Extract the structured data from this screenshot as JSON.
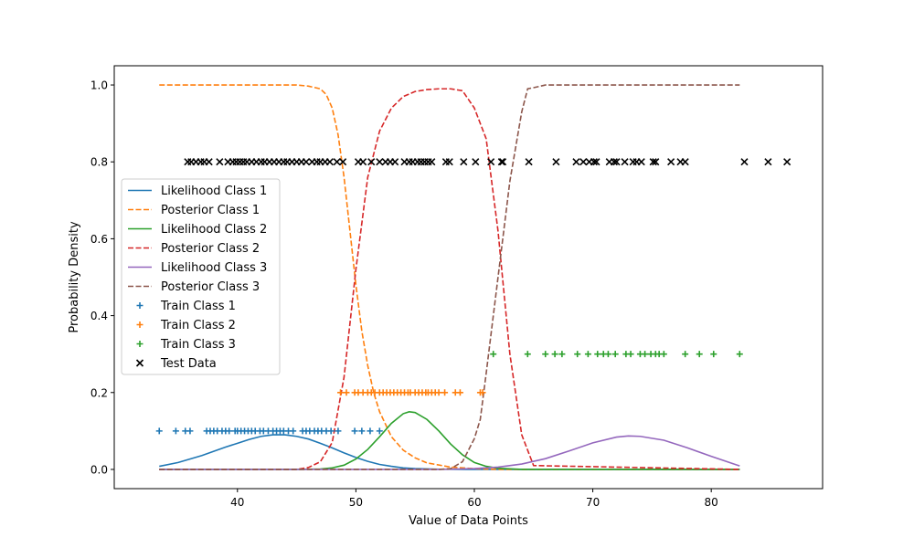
{
  "chart_data": {
    "type": "line",
    "title": "",
    "xlabel": "Value of Data Points",
    "ylabel": "Probability Density",
    "xlim": [
      29.6,
      89.4
    ],
    "ylim": [
      -0.05,
      1.05
    ],
    "xticks": [
      40,
      50,
      60,
      70,
      80
    ],
    "yticks": [
      0.0,
      0.2,
      0.4,
      0.6,
      0.8,
      1.0
    ],
    "ytick_labels": [
      "0.0",
      "0.2",
      "0.4",
      "0.6",
      "0.8",
      "1.0"
    ],
    "grid": false,
    "legend_position": "center-left",
    "legend": [
      {
        "label": "Likelihood Class 1",
        "kind": "line",
        "color": "#1f77b4",
        "dash": false
      },
      {
        "label": "Posterior Class 1",
        "kind": "line",
        "color": "#ff7f0e",
        "dash": true
      },
      {
        "label": "Likelihood Class 2",
        "kind": "line",
        "color": "#2ca02c",
        "dash": false
      },
      {
        "label": "Posterior Class 2",
        "kind": "line",
        "color": "#d62728",
        "dash": true
      },
      {
        "label": "Likelihood Class 3",
        "kind": "line",
        "color": "#9467bd",
        "dash": false
      },
      {
        "label": "Posterior Class 3",
        "kind": "line",
        "color": "#8c564b",
        "dash": true
      },
      {
        "label": "Train Class 1",
        "kind": "plus",
        "color": "#1f77b4"
      },
      {
        "label": "Train Class 2",
        "kind": "plus",
        "color": "#ff7f0e"
      },
      {
        "label": "Train Class 3",
        "kind": "plus",
        "color": "#2ca02c"
      },
      {
        "label": "Test Data",
        "kind": "cross",
        "color": "#000000"
      }
    ],
    "series": [
      {
        "name": "Likelihood Class 1",
        "color": "#1f77b4",
        "dash": false,
        "x": [
          33.4,
          35,
          37,
          39,
          40,
          41,
          42,
          43,
          44,
          45,
          46,
          47,
          48,
          49,
          50,
          51,
          52,
          53,
          54,
          55,
          57,
          60,
          82.4
        ],
        "y": [
          0.008,
          0.018,
          0.036,
          0.058,
          0.068,
          0.078,
          0.086,
          0.09,
          0.09,
          0.086,
          0.079,
          0.068,
          0.056,
          0.043,
          0.031,
          0.021,
          0.013,
          0.008,
          0.004,
          0.002,
          0.0005,
          0.0,
          0.0
        ]
      },
      {
        "name": "Posterior Class 1",
        "color": "#ff7f0e",
        "dash": true,
        "x": [
          33.4,
          44,
          45,
          46,
          47,
          47.5,
          48,
          48.5,
          49,
          49.5,
          50,
          50.5,
          51,
          51.5,
          52,
          53,
          54,
          55,
          56,
          58,
          60,
          62,
          82.4
        ],
        "y": [
          1.0,
          1.0,
          1.0,
          0.997,
          0.99,
          0.975,
          0.94,
          0.87,
          0.76,
          0.62,
          0.48,
          0.36,
          0.27,
          0.2,
          0.15,
          0.085,
          0.05,
          0.03,
          0.017,
          0.006,
          0.002,
          0.0,
          0.0
        ]
      },
      {
        "name": "Likelihood Class 2",
        "color": "#2ca02c",
        "dash": false,
        "x": [
          33.4,
          45,
          47,
          48,
          49,
          50,
          51,
          52,
          53,
          54,
          54.5,
          55,
          56,
          57,
          58,
          59,
          60,
          61,
          62,
          64,
          82.4
        ],
        "y": [
          0.0,
          0.0,
          0.001,
          0.004,
          0.011,
          0.027,
          0.052,
          0.085,
          0.12,
          0.145,
          0.15,
          0.148,
          0.13,
          0.1,
          0.066,
          0.038,
          0.018,
          0.008,
          0.003,
          0.0,
          0.0
        ]
      },
      {
        "name": "Posterior Class 2",
        "color": "#d62728",
        "dash": true,
        "x": [
          33.4,
          45,
          46,
          47,
          48,
          49,
          50,
          51,
          52,
          53,
          54,
          55,
          56,
          57,
          58,
          59,
          60,
          60.5,
          61,
          62,
          63,
          64,
          65,
          82.4
        ],
        "y": [
          0.0,
          0.0,
          0.005,
          0.02,
          0.07,
          0.24,
          0.52,
          0.76,
          0.88,
          0.94,
          0.97,
          0.983,
          0.988,
          0.99,
          0.99,
          0.985,
          0.94,
          0.9,
          0.86,
          0.62,
          0.3,
          0.09,
          0.01,
          0.0
        ]
      },
      {
        "name": "Likelihood Class 3",
        "color": "#9467bd",
        "dash": false,
        "x": [
          33.4,
          57,
          60,
          62,
          64,
          66,
          68,
          70,
          72,
          73,
          74,
          76,
          78,
          80,
          82.4
        ],
        "y": [
          0.0,
          0.0,
          0.002,
          0.006,
          0.014,
          0.028,
          0.048,
          0.069,
          0.084,
          0.087,
          0.086,
          0.076,
          0.056,
          0.034,
          0.009
        ]
      },
      {
        "name": "Posterior Class 3",
        "color": "#8c564b",
        "dash": true,
        "x": [
          33.4,
          57,
          58,
          59,
          60,
          60.5,
          61,
          62,
          63,
          64,
          64.5,
          65,
          66,
          68,
          82.4
        ],
        "y": [
          0.0,
          0.0,
          0.002,
          0.02,
          0.08,
          0.13,
          0.25,
          0.5,
          0.75,
          0.93,
          0.99,
          0.993,
          1.0,
          1.0,
          1.0
        ]
      }
    ],
    "scatter": [
      {
        "name": "Train Class 1",
        "marker": "plus",
        "color": "#1f77b4",
        "y": 0.1,
        "x": [
          33.4,
          34.8,
          35.6,
          36.0,
          37.4,
          37.7,
          38.0,
          38.3,
          38.7,
          39.0,
          39.3,
          39.8,
          40.0,
          40.3,
          40.6,
          40.9,
          41.2,
          41.5,
          41.9,
          42.2,
          42.6,
          43.0,
          43.3,
          43.6,
          43.9,
          44.3,
          44.7,
          45.5,
          45.8,
          46.1,
          46.5,
          46.8,
          47.1,
          47.5,
          47.9,
          48.5,
          49.9,
          50.5,
          51.2,
          52.0
        ]
      },
      {
        "name": "Train Class 2",
        "marker": "plus",
        "color": "#ff7f0e",
        "y": 0.2,
        "x": [
          48.7,
          49.2,
          49.9,
          50.2,
          50.6,
          51.0,
          51.3,
          51.6,
          52.0,
          52.3,
          52.6,
          52.9,
          53.2,
          53.5,
          53.8,
          54.1,
          54.4,
          54.6,
          55.0,
          55.3,
          55.6,
          55.9,
          56.1,
          56.4,
          56.7,
          57.0,
          57.5,
          58.4,
          58.8,
          60.5,
          60.7
        ]
      },
      {
        "name": "Train Class 3",
        "marker": "plus",
        "color": "#2ca02c",
        "y": 0.3,
        "x": [
          61.6,
          64.5,
          66.0,
          66.8,
          67.4,
          68.7,
          69.6,
          70.4,
          70.9,
          71.3,
          71.9,
          72.8,
          73.2,
          74.0,
          74.4,
          74.9,
          75.3,
          75.6,
          76.0,
          77.8,
          79.0,
          80.2,
          82.4
        ]
      },
      {
        "name": "Test Data",
        "marker": "cross",
        "color": "#000000",
        "y": 0.8,
        "x": [
          35.8,
          36.1,
          36.5,
          36.9,
          37.2,
          37.6,
          38.5,
          39.2,
          39.6,
          39.9,
          40.2,
          40.5,
          40.8,
          41.2,
          41.6,
          42.0,
          42.3,
          42.7,
          43.1,
          43.5,
          43.9,
          44.2,
          44.6,
          45.0,
          45.4,
          45.8,
          46.3,
          46.7,
          47.0,
          47.4,
          47.8,
          48.4,
          48.9,
          50.2,
          50.6,
          51.3,
          52.0,
          52.5,
          52.9,
          53.3,
          54.1,
          54.5,
          54.8,
          55.2,
          55.5,
          55.8,
          56.1,
          56.4,
          57.6,
          57.9,
          59.1,
          60.1,
          61.4,
          62.3,
          62.4,
          64.6,
          66.9,
          68.6,
          69.2,
          69.7,
          70.1,
          70.3,
          71.4,
          71.8,
          72.0,
          72.7,
          73.4,
          73.7,
          74.1,
          75.1,
          75.3,
          76.6,
          77.4,
          77.8,
          82.8,
          84.8,
          86.4
        ]
      }
    ]
  }
}
